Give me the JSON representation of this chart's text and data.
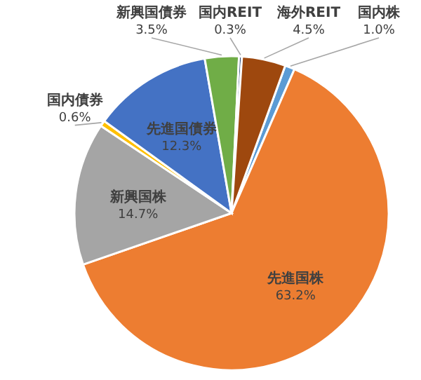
{
  "chart_data": {
    "type": "pie",
    "categories": [
      "国内株",
      "先進国株",
      "新興国株",
      "国内債券",
      "先進国債券",
      "新興国債券",
      "国内REIT",
      "海外REIT"
    ],
    "values": [
      1.0,
      63.2,
      14.7,
      0.6,
      12.3,
      3.5,
      0.3,
      4.5
    ],
    "colors": [
      "#5b9bd5",
      "#ed7d31",
      "#a5a5a5",
      "#ffc000",
      "#4472c4",
      "#70ad47",
      "#264478",
      "#9e480e"
    ],
    "value_labels": [
      "1.0%",
      "63.2%",
      "14.7%",
      "0.6%",
      "12.3%",
      "3.5%",
      "0.3%",
      "4.5%"
    ],
    "legend": false
  }
}
